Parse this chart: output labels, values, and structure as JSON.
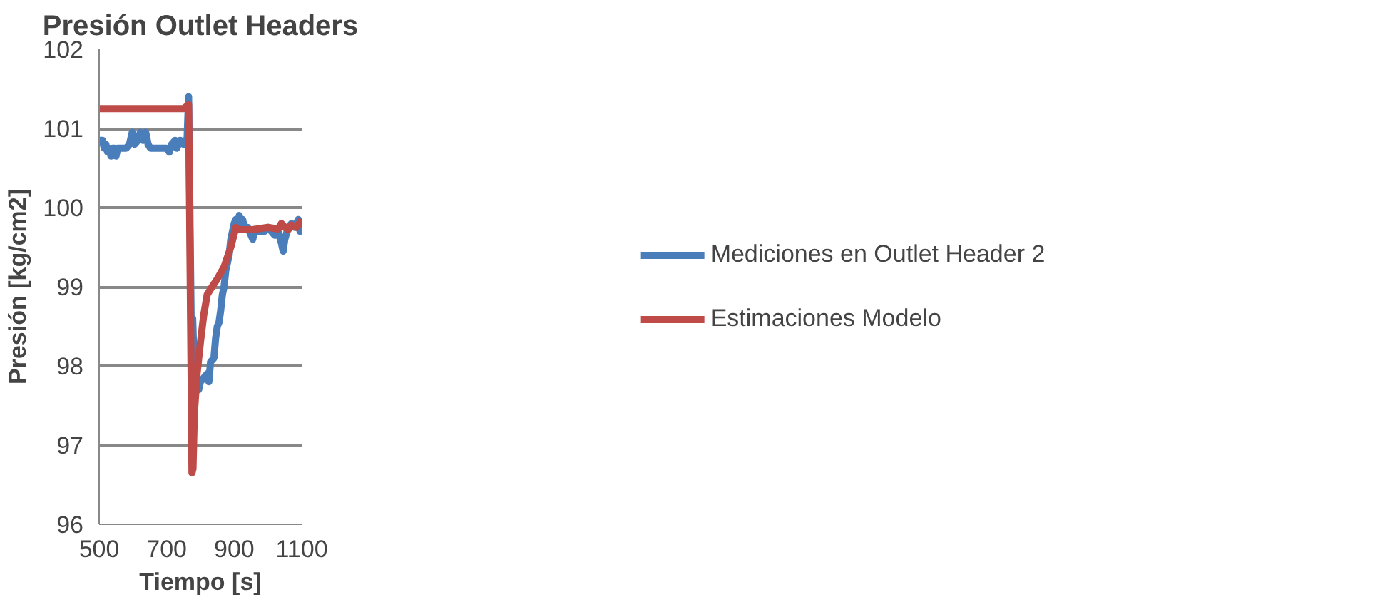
{
  "chart_data": {
    "type": "line",
    "title": "Presión Outlet Headers",
    "xlabel": "Tiempo [s]",
    "ylabel": "Presión [kg/cm2]",
    "xlim": [
      500,
      1100
    ],
    "xticks": [
      500,
      700,
      900,
      1100
    ],
    "ylim": [
      96,
      102
    ],
    "yticks": [
      96,
      97,
      98,
      99,
      100,
      101,
      102
    ],
    "grid": "y",
    "legend": "right",
    "marker": "none",
    "line_style": "solid",
    "series": [
      {
        "name": "Mediciones en Outlet Header 2",
        "color": "#4a7ebb",
        "x": [
          500,
          510,
          515,
          520,
          525,
          530,
          535,
          540,
          545,
          550,
          555,
          580,
          590,
          598,
          605,
          615,
          622,
          630,
          638,
          645,
          652,
          665,
          700,
          708,
          715,
          725,
          730,
          740,
          750,
          755,
          760,
          765,
          770,
          775,
          777,
          780,
          785,
          790,
          795,
          800,
          810,
          820,
          825,
          830,
          840,
          845,
          850,
          855,
          860,
          865,
          870,
          875,
          880,
          885,
          890,
          895,
          900,
          905,
          910,
          915,
          920,
          925,
          930,
          940,
          950,
          955,
          960,
          975,
          990,
          1000,
          1010,
          1020,
          1030,
          1040,
          1045,
          1050,
          1060,
          1070,
          1080,
          1090,
          1095,
          1100
        ],
        "values": [
          100.85,
          100.85,
          100.75,
          100.8,
          100.7,
          100.75,
          100.65,
          100.75,
          100.75,
          100.65,
          100.75,
          100.75,
          100.8,
          100.95,
          100.8,
          100.85,
          100.95,
          100.85,
          100.95,
          100.8,
          100.75,
          100.75,
          100.75,
          100.7,
          100.8,
          100.85,
          100.75,
          100.85,
          100.8,
          100.85,
          100.8,
          101.4,
          99.5,
          97.6,
          98.6,
          98.2,
          98.15,
          97.8,
          97.7,
          97.8,
          97.85,
          97.9,
          97.8,
          98.05,
          98.1,
          98.35,
          98.5,
          98.55,
          98.7,
          98.9,
          99.0,
          99.2,
          99.3,
          99.4,
          99.6,
          99.7,
          99.8,
          99.85,
          99.75,
          99.9,
          99.75,
          99.85,
          99.75,
          99.75,
          99.65,
          99.6,
          99.7,
          99.7,
          99.7,
          99.75,
          99.7,
          99.65,
          99.7,
          99.55,
          99.45,
          99.6,
          99.75,
          99.8,
          99.75,
          99.85,
          99.7,
          99.75
        ]
      },
      {
        "name": "Estimaciones Modelo",
        "color": "#be4b48",
        "x": [
          500,
          750,
          765,
          770,
          775,
          778,
          782,
          790,
          800,
          810,
          820,
          830,
          850,
          870,
          890,
          905,
          915,
          950,
          1000,
          1030,
          1040,
          1050,
          1060,
          1070,
          1085,
          1100
        ],
        "values": [
          101.25,
          101.25,
          101.3,
          99.0,
          96.65,
          96.7,
          97.4,
          97.9,
          98.3,
          98.65,
          98.9,
          98.97,
          99.1,
          99.25,
          99.5,
          99.75,
          99.72,
          99.72,
          99.75,
          99.73,
          99.8,
          99.75,
          99.72,
          99.78,
          99.75,
          99.85
        ]
      }
    ]
  }
}
